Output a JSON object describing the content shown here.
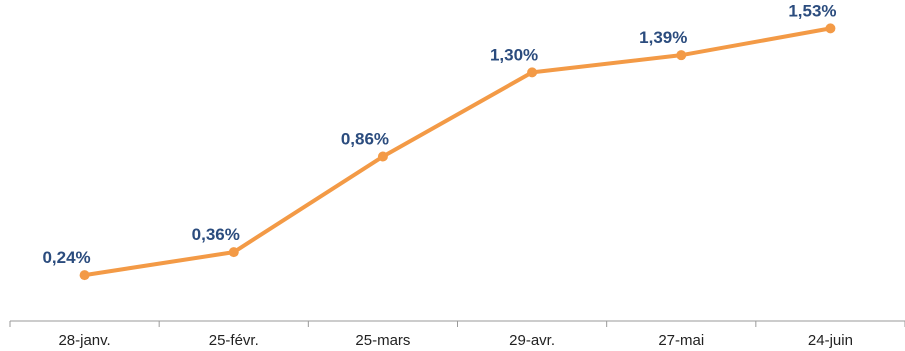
{
  "chart_data": {
    "type": "line",
    "categories": [
      "28-janv.",
      "25-févr.",
      "25-mars",
      "29-avr.",
      "27-mai",
      "24-juin"
    ],
    "values": [
      0.24,
      0.36,
      0.86,
      1.3,
      1.39,
      1.53
    ],
    "data_labels": [
      "0,24%",
      "0,36%",
      "0,86%",
      "1,30%",
      "1,39%",
      "1,53%"
    ],
    "title": "",
    "xlabel": "",
    "ylabel": "",
    "ylim": [
      0,
      1.6
    ],
    "grid": false,
    "legend": "none",
    "colors": {
      "line": "#f39a46",
      "label": "#2b4c7e",
      "axis": "#9a9a9a"
    }
  }
}
